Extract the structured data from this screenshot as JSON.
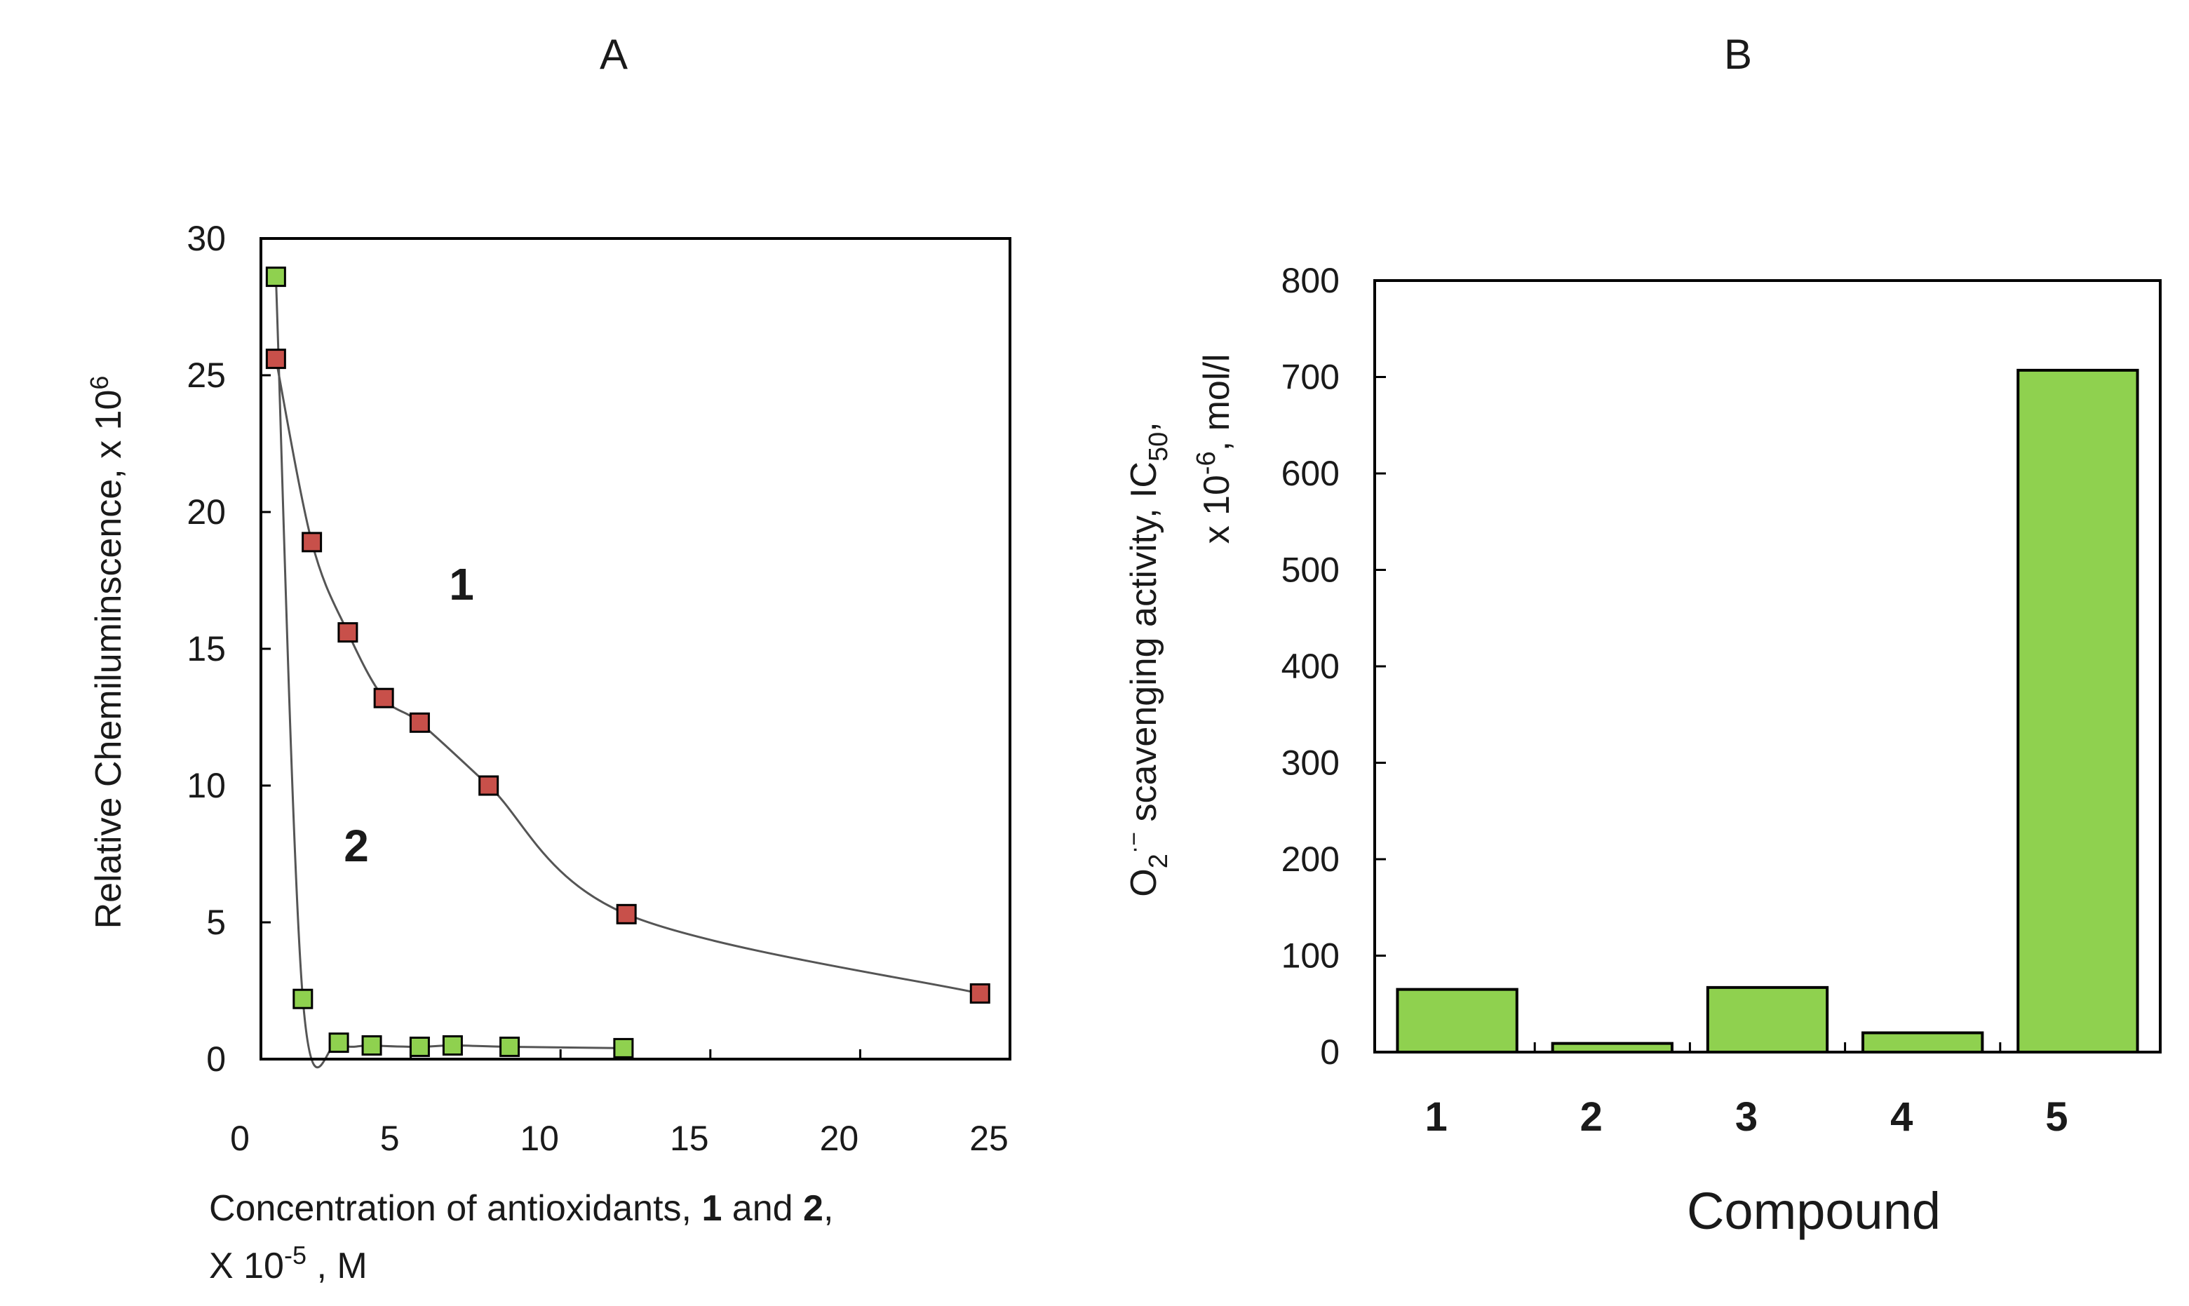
{
  "chart_data": [
    {
      "type": "scatter",
      "title": "A",
      "xlabel": {
        "line1_prefix": "Concentration of antioxidants, ",
        "compound_1": "1",
        "connector": " and ",
        "compound_2": "2",
        "line1_suffix": ",",
        "line2_prefix": "X 10",
        "line2_exponent": "-5",
        "line2_suffix": " , M"
      },
      "ylabel": {
        "prefix": "Relative Chemiluminscence, x 10",
        "exponent": "6"
      },
      "xlim": [
        0,
        25
      ],
      "ylim": [
        0,
        30
      ],
      "xticks": [
        0,
        5,
        10,
        15,
        20,
        25
      ],
      "yticks": [
        0,
        5,
        10,
        15,
        20,
        25,
        30
      ],
      "grid": false,
      "series": [
        {
          "name": "1",
          "color": "#c8504a",
          "x": [
            0.5,
            1.7,
            2.9,
            4.1,
            5.3,
            7.6,
            12.2,
            24.0
          ],
          "y": [
            25.6,
            18.9,
            15.6,
            13.2,
            12.3,
            10.0,
            5.3,
            2.4
          ]
        },
        {
          "name": "2",
          "color": "#8fd14f",
          "x": [
            0.5,
            1.4,
            2.6,
            3.7,
            5.3,
            6.4,
            8.3,
            12.1
          ],
          "y": [
            28.6,
            2.2,
            0.6,
            0.5,
            0.45,
            0.5,
            0.45,
            0.4
          ]
        }
      ]
    },
    {
      "type": "bar",
      "title": "B",
      "xlabel": "Compound",
      "ylabel": {
        "line1_o": "O",
        "line1_o_sub": "2",
        "line1_o_sup": "·−",
        "line1_text": " scavenging activity, IC",
        "line1_ic_sub": "50",
        "line1_end": ",",
        "line2_prefix": "x 10",
        "line2_exponent": "-6",
        "line2_suffix": ", mol/l"
      },
      "categories": [
        "1",
        "2",
        "3",
        "4",
        "5"
      ],
      "values": [
        65,
        9,
        67,
        20,
        707
      ],
      "ylim": [
        0,
        800
      ],
      "yticks": [
        0,
        100,
        200,
        300,
        400,
        500,
        600,
        700,
        800
      ],
      "grid": false,
      "color": "#8fd14f"
    }
  ]
}
